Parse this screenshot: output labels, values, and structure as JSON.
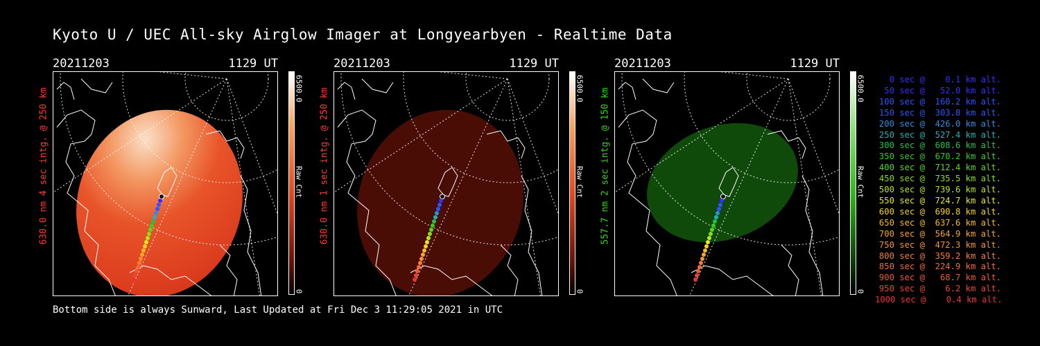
{
  "title": "Kyoto U / UEC All-sky Airglow Imager at Longyearbyen - Realtime Data",
  "footer": "Bottom side is always Sunward, Last Updated at Fri Dec  3 11:29:05 2021 in UTC",
  "panels": [
    {
      "date": "20211203",
      "time": "1129 UT",
      "side_label": "630.0 nm 4 sec intg. @ 250 km",
      "label_color": "#ff3b30",
      "cbar_max": "6500.0",
      "cbar_min": "0",
      "cbar_unit": "Raw Cnt",
      "image_color": "#e8441c"
    },
    {
      "date": "20211203",
      "time": "1129 UT",
      "side_label": "630.0 nm 1 sec intg. @ 250 km",
      "label_color": "#ff3b30",
      "cbar_max": "6500.0",
      "cbar_min": "0",
      "cbar_unit": "Raw Cnt",
      "image_color": "#4a0d06"
    },
    {
      "date": "20211203",
      "time": "1129 UT",
      "side_label": "557.7 nm 2 sec intg. @ 150 km",
      "label_color": "#39d21e",
      "cbar_max": "6500.0",
      "cbar_min": "0",
      "cbar_unit": "Raw Cnt",
      "image_color": "#0f4a0a"
    }
  ],
  "legend": [
    {
      "text": "0 sec @    0.1 km alt.",
      "color": "#3a2cff"
    },
    {
      "text": "50 sec @   52.0 km alt.",
      "color": "#3a2cff"
    },
    {
      "text": "100 sec @  160.2 km alt.",
      "color": "#2b55ff"
    },
    {
      "text": "150 sec @  303.8 km alt.",
      "color": "#2b55ff"
    },
    {
      "text": "200 sec @  426.0 km alt.",
      "color": "#2d8fe0"
    },
    {
      "text": "250 sec @  527.4 km alt.",
      "color": "#29b0b0"
    },
    {
      "text": "300 sec @  608.6 km alt.",
      "color": "#22c24a"
    },
    {
      "text": "350 sec @  670.2 km alt.",
      "color": "#2fd021"
    },
    {
      "text": "400 sec @  712.4 km alt.",
      "color": "#58d91d"
    },
    {
      "text": "450 sec @  735.5 km alt.",
      "color": "#86df1a"
    },
    {
      "text": "500 sec @  739.6 km alt.",
      "color": "#b7e61a"
    },
    {
      "text": "550 sec @  724.7 km alt.",
      "color": "#e6ea1f"
    },
    {
      "text": "600 sec @  690.8 km alt.",
      "color": "#f5d422"
    },
    {
      "text": "650 sec @  637.6 km alt.",
      "color": "#f6bb28"
    },
    {
      "text": "700 sec @  564.9 km alt.",
      "color": "#f7a62d"
    },
    {
      "text": "750 sec @  472.3 km alt.",
      "color": "#f79433"
    },
    {
      "text": "800 sec @  359.2 km alt.",
      "color": "#f67e34"
    },
    {
      "text": "850 sec @  224.9 km alt.",
      "color": "#f46a34"
    },
    {
      "text": "900 sec @   68.7 km alt.",
      "color": "#f25634"
    },
    {
      "text": "950 sec @    6.2 km alt.",
      "color": "#ee4434"
    },
    {
      "text": "1000 sec @    0.4 km alt.",
      "color": "#ea3434"
    }
  ]
}
